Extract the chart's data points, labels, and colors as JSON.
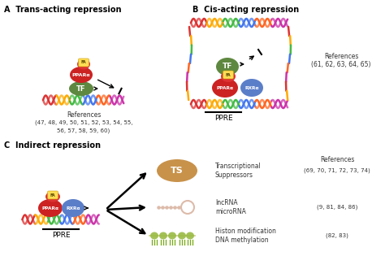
{
  "title_A": "A  Trans-acting repression",
  "title_B": "B  Cis-acting repression",
  "title_C": "C  Indirect repression",
  "ref_A_line1": "(47, 48, 49, 50, 51, 52, 53, 54, 55,",
  "ref_A_line2": "56, 57, 58, 59, 60)",
  "ref_B": "(61, 62, 63, 64, 65)",
  "ref_C1": "(69, 70, 71, 72, 73, 74)",
  "ref_C2": "(9, 81, 84, 86)",
  "ref_C3": "(82, 83)",
  "label_refs": "References",
  "label_PPRE": "PPRE",
  "label_PPARa": "PPARα",
  "label_RXRa": "RXRα",
  "label_TF": "TF",
  "label_TS": "TS",
  "label_FA": "FA",
  "label_TS_full": "Transcriptional\nSuppressors",
  "label_lncRNA": "lncRNA\nmicroRNA",
  "label_histon": "Histon modification\nDNA methylation",
  "bg_color": "#ffffff",
  "red_color": "#cc2222",
  "blue_color": "#5b7ec9",
  "green_color": "#5e8840",
  "tan_color": "#c8924a",
  "text_color": "#333333",
  "dna_seg_colors": [
    "#dd3333",
    "#ffaa00",
    "#44bb44",
    "#4477ee",
    "#ff6622",
    "#cc33aa"
  ],
  "nucleosome_color": "#99bb44",
  "lncrna_color": "#ddbbaa"
}
